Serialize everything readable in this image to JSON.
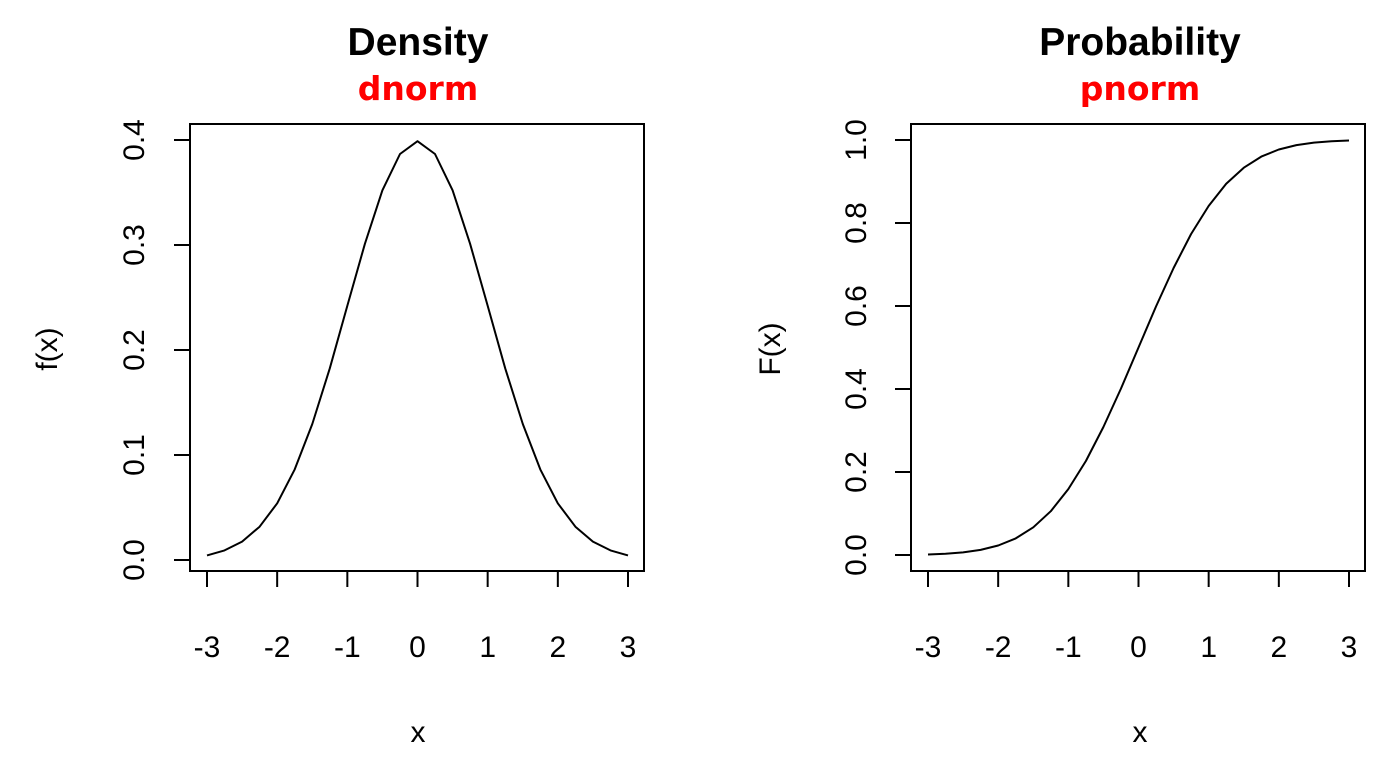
{
  "chart_data": [
    {
      "type": "line",
      "title": "Density",
      "subtitle": "dnorm",
      "xlabel": "x",
      "ylabel": "f(x)",
      "xlim": [
        -3,
        3
      ],
      "ylim": [
        0,
        0.4
      ],
      "x_ticks": [
        "-3",
        "-2",
        "-1",
        "0",
        "1",
        "2",
        "3"
      ],
      "y_ticks": [
        "0.0",
        "0.1",
        "0.2",
        "0.3",
        "0.4"
      ],
      "grid": false,
      "series": [
        {
          "x": [
            -3.0,
            -2.75,
            -2.5,
            -2.25,
            -2.0,
            -1.75,
            -1.5,
            -1.25,
            -1.0,
            -0.75,
            -0.5,
            -0.25,
            0.0,
            0.25,
            0.5,
            0.75,
            1.0,
            1.25,
            1.5,
            1.75,
            2.0,
            2.25,
            2.5,
            2.75,
            3.0
          ],
          "y": [
            0.0044,
            0.0091,
            0.0175,
            0.0317,
            0.054,
            0.0863,
            0.1295,
            0.1826,
            0.242,
            0.3011,
            0.3521,
            0.3867,
            0.3989,
            0.3867,
            0.3521,
            0.3011,
            0.242,
            0.1826,
            0.1295,
            0.0863,
            0.054,
            0.0317,
            0.0175,
            0.0091,
            0.0044
          ]
        }
      ]
    },
    {
      "type": "line",
      "title": "Probability",
      "subtitle": "pnorm",
      "xlabel": "x",
      "ylabel": "F(x)",
      "xlim": [
        -3,
        3
      ],
      "ylim": [
        0,
        1
      ],
      "x_ticks": [
        "-3",
        "-2",
        "-1",
        "0",
        "1",
        "2",
        "3"
      ],
      "y_ticks": [
        "0.0",
        "0.2",
        "0.4",
        "0.6",
        "0.8",
        "1.0"
      ],
      "grid": false,
      "series": [
        {
          "x": [
            -3.0,
            -2.75,
            -2.5,
            -2.25,
            -2.0,
            -1.75,
            -1.5,
            -1.25,
            -1.0,
            -0.75,
            -0.5,
            -0.25,
            0.0,
            0.25,
            0.5,
            0.75,
            1.0,
            1.25,
            1.5,
            1.75,
            2.0,
            2.25,
            2.5,
            2.75,
            3.0
          ],
          "y": [
            0.0013,
            0.003,
            0.0062,
            0.0122,
            0.0228,
            0.0401,
            0.0668,
            0.1056,
            0.1587,
            0.2266,
            0.3085,
            0.4013,
            0.5,
            0.5987,
            0.6915,
            0.7734,
            0.8413,
            0.8944,
            0.9332,
            0.9599,
            0.9772,
            0.9878,
            0.9938,
            0.997,
            0.9987
          ]
        }
      ]
    }
  ],
  "colors": {
    "subtitle": "#ff0000",
    "line": "#000000",
    "axis": "#000000"
  }
}
